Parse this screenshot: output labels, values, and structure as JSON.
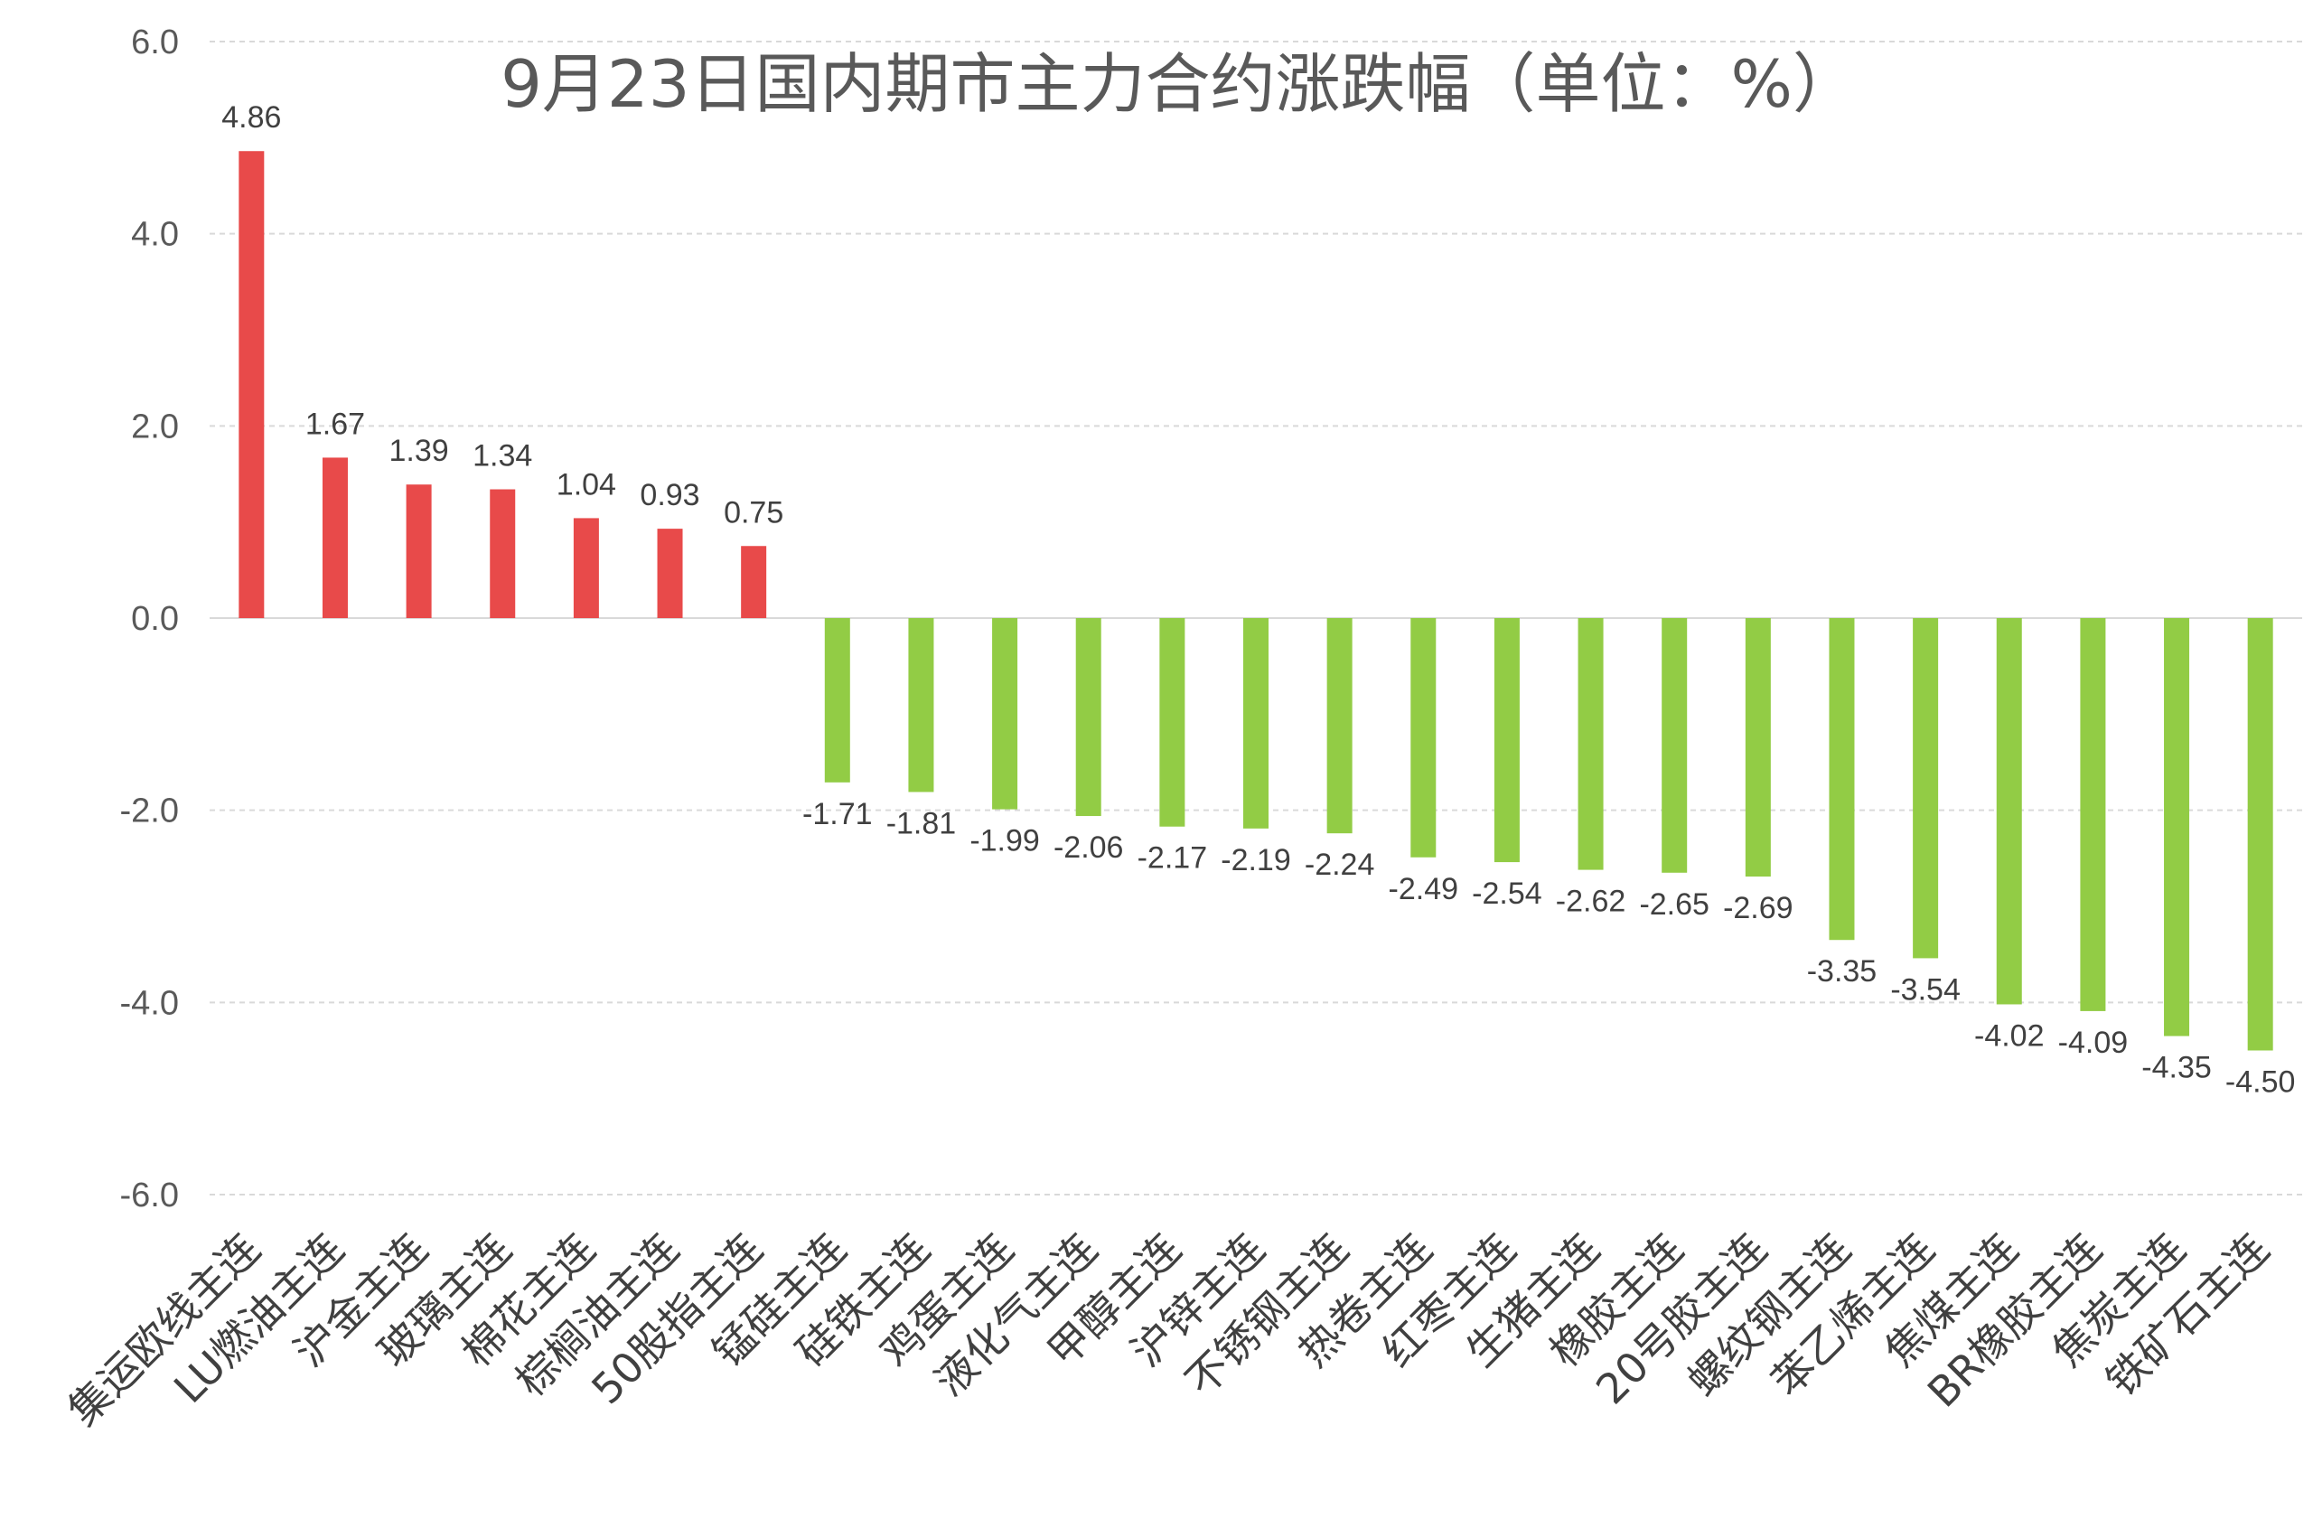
{
  "chart_data": {
    "type": "bar",
    "title": "9月23日国内期市主力合约涨跌幅（单位：%）",
    "xlabel": "",
    "ylabel": "",
    "ylim": [
      -6,
      6
    ],
    "yticks": [
      "6.0",
      "4.0",
      "2.0",
      "0.0",
      "-2.0",
      "-4.0",
      "-6.0"
    ],
    "grid": true,
    "legend": "none",
    "colors": {
      "positive": "#e84a4a",
      "negative": "#92cc45"
    },
    "categories": [
      "集运欧线主连",
      "LU燃油主连",
      "沪金主连",
      "玻璃主连",
      "棉花主连",
      "棕榈油主连",
      "50股指主连",
      "锰硅主连",
      "硅铁主连",
      "鸡蛋主连",
      "液化气主连",
      "甲醇主连",
      "沪锌主连",
      "不锈钢主连",
      "热卷主连",
      "红枣主连",
      "生猪主连",
      "橡胶主连",
      "20号胶主连",
      "螺纹钢主连",
      "苯乙烯主连",
      "焦煤主连",
      "BR橡胶主连",
      "焦炭主连",
      "铁矿石主连"
    ],
    "values": [
      4.86,
      1.67,
      1.39,
      1.34,
      1.04,
      0.93,
      0.75,
      -1.71,
      -1.81,
      -1.99,
      -2.06,
      -2.17,
      -2.19,
      -2.24,
      -2.49,
      -2.54,
      -2.62,
      -2.65,
      -2.69,
      -3.35,
      -3.54,
      -4.02,
      -4.09,
      -4.35,
      -4.5
    ],
    "labels": [
      "4.86",
      "1.67",
      "1.39",
      "1.34",
      "1.04",
      "0.93",
      "0.75",
      "-1.71",
      "-1.81",
      "-1.99",
      "-2.06",
      "-2.17",
      "-2.19",
      "-2.24",
      "-2.49",
      "-2.54",
      "-2.62",
      "-2.65",
      "-2.69",
      "-3.35",
      "-3.54",
      "-4.02",
      "-4.09",
      "-4.35",
      "-4.50"
    ]
  }
}
